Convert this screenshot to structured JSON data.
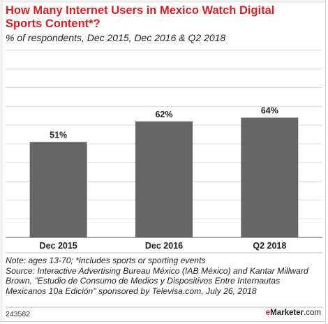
{
  "header": {
    "title": "How Many Internet Users in Mexico Watch Digital Sports Content*?",
    "subtitle": "% of respondents, Dec 2015, Dec 2016 & Q2 2018"
  },
  "chart_data": {
    "type": "bar",
    "categories": [
      "Dec 2015",
      "Dec 2016",
      "Q2 2018"
    ],
    "values": [
      51,
      62,
      64
    ],
    "value_labels": [
      "51%",
      "62%",
      "64%"
    ],
    "ylim": [
      0,
      100
    ],
    "grid": true,
    "bar_color": "#666666",
    "legend": "none"
  },
  "notes": {
    "line1": "Note: ages 13-70; *includes sports or sporting events",
    "line2": "Source: Interactive Advertising Bureau México (IAB México) and Kantar Millward Brown, \"Estudio de Consumo de Medios y Dispositivos Entre Internautas Mexicanos 10a Edición\" sponsored by Televisa.com, July 26, 2018"
  },
  "footer": {
    "id": "243582",
    "brand_e": "e",
    "brand_rest": "Marketer",
    "brand_suffix": ".com"
  },
  "colors": {
    "title": "#d81e25",
    "bar": "#666666",
    "grid": "#dcdcdc"
  }
}
